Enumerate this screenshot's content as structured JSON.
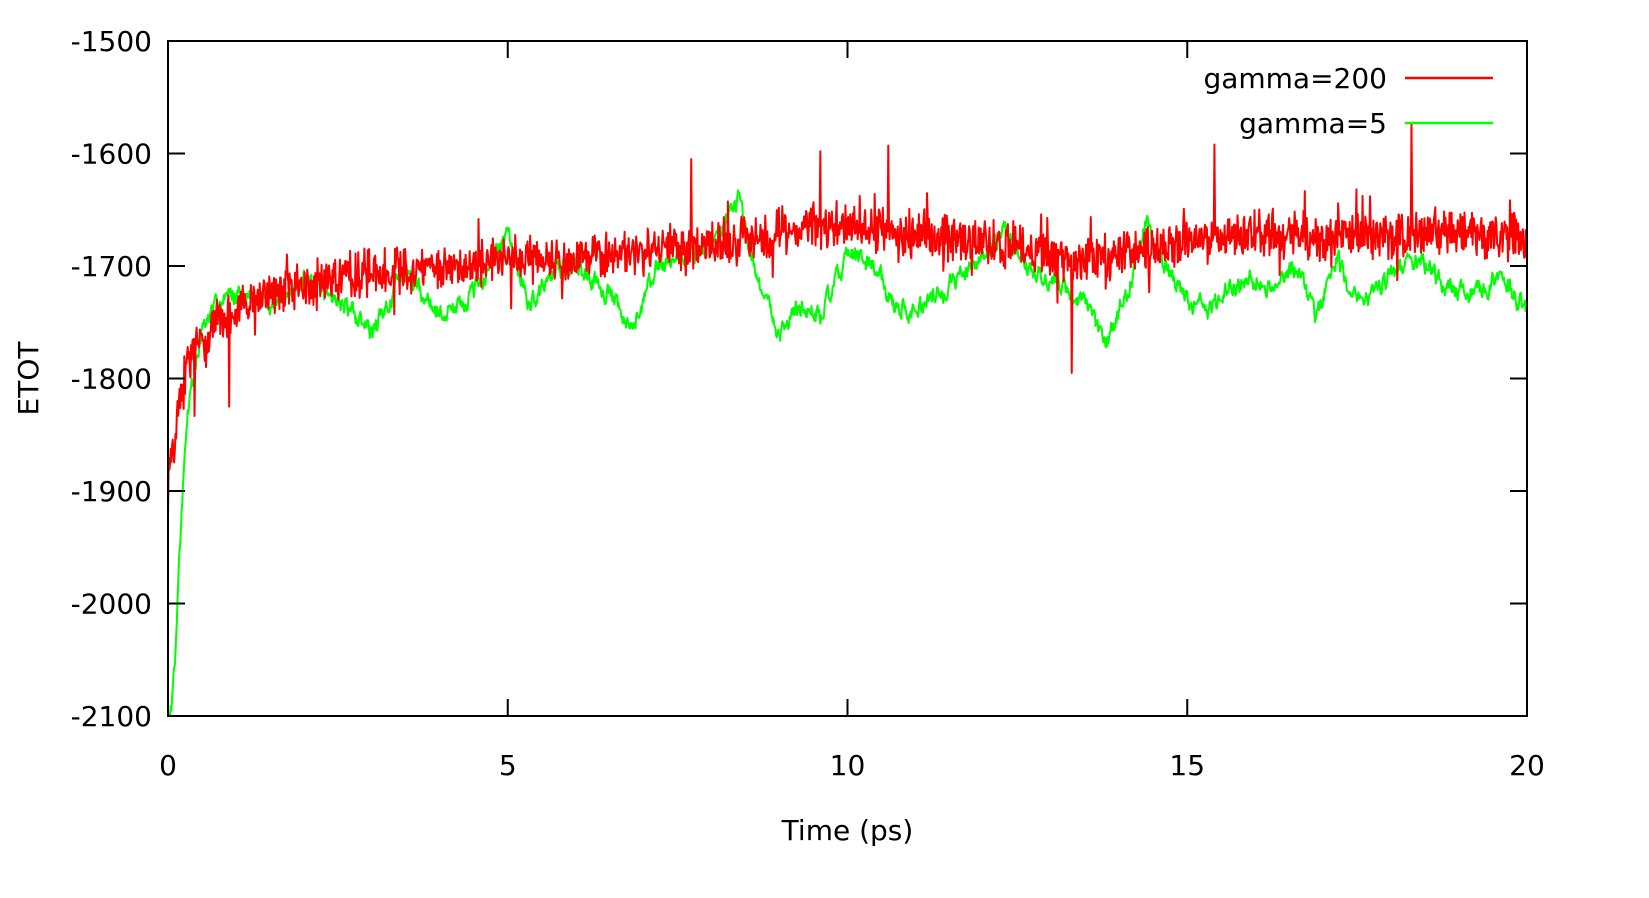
{
  "chart_data": {
    "type": "line",
    "xlabel": "Time (ps)",
    "ylabel": "ETOT",
    "xlim": [
      0,
      20
    ],
    "ylim": [
      -2100,
      -1500
    ],
    "xticks": [
      0,
      5,
      10,
      15,
      20
    ],
    "yticks": [
      -2100,
      -2000,
      -1900,
      -1800,
      -1700,
      -1600,
      -1500
    ],
    "grid": false,
    "legend_position": "top-right",
    "series": [
      {
        "name": "gamma=200",
        "color": "#ff0000",
        "style": "noisy",
        "noise": 16,
        "spikes": [
          {
            "x": 7.7,
            "y": -1605
          },
          {
            "x": 9.6,
            "y": -1598
          },
          {
            "x": 10.6,
            "y": -1593
          },
          {
            "x": 13.3,
            "y": -1795
          },
          {
            "x": 15.4,
            "y": -1592
          },
          {
            "x": 18.3,
            "y": -1573
          },
          {
            "x": 0.9,
            "y": -1825
          }
        ],
        "points": [
          [
            0.0,
            -1890
          ],
          [
            0.05,
            -1870
          ],
          [
            0.1,
            -1845
          ],
          [
            0.2,
            -1810
          ],
          [
            0.3,
            -1790
          ],
          [
            0.5,
            -1765
          ],
          [
            0.7,
            -1750
          ],
          [
            1.0,
            -1740
          ],
          [
            1.5,
            -1725
          ],
          [
            2.0,
            -1718
          ],
          [
            2.5,
            -1710
          ],
          [
            3.0,
            -1705
          ],
          [
            3.5,
            -1703
          ],
          [
            4.0,
            -1700
          ],
          [
            4.5,
            -1697
          ],
          [
            5.0,
            -1695
          ],
          [
            5.5,
            -1693
          ],
          [
            6.0,
            -1691
          ],
          [
            6.5,
            -1690
          ],
          [
            7.0,
            -1688
          ],
          [
            7.5,
            -1685
          ],
          [
            8.0,
            -1683
          ],
          [
            8.5,
            -1675
          ],
          [
            9.0,
            -1668
          ],
          [
            9.5,
            -1665
          ],
          [
            10.0,
            -1663
          ],
          [
            10.5,
            -1667
          ],
          [
            11.0,
            -1670
          ],
          [
            11.5,
            -1675
          ],
          [
            12.0,
            -1680
          ],
          [
            12.5,
            -1682
          ],
          [
            13.0,
            -1690
          ],
          [
            13.3,
            -1700
          ],
          [
            13.6,
            -1692
          ],
          [
            14.0,
            -1688
          ],
          [
            14.5,
            -1685
          ],
          [
            15.0,
            -1680
          ],
          [
            15.5,
            -1675
          ],
          [
            16.0,
            -1672
          ],
          [
            16.5,
            -1670
          ],
          [
            17.0,
            -1675
          ],
          [
            17.5,
            -1673
          ],
          [
            18.0,
            -1672
          ],
          [
            18.5,
            -1670
          ],
          [
            19.0,
            -1670
          ],
          [
            19.5,
            -1672
          ],
          [
            20.0,
            -1675
          ]
        ]
      },
      {
        "name": "gamma=5",
        "color": "#00ff00",
        "style": "smooth",
        "noise": 7,
        "points": [
          [
            0.0,
            -2100
          ],
          [
            0.05,
            -2095
          ],
          [
            0.1,
            -2050
          ],
          [
            0.15,
            -1980
          ],
          [
            0.2,
            -1920
          ],
          [
            0.25,
            -1870
          ],
          [
            0.3,
            -1830
          ],
          [
            0.4,
            -1790
          ],
          [
            0.5,
            -1760
          ],
          [
            0.7,
            -1735
          ],
          [
            1.0,
            -1725
          ],
          [
            1.5,
            -1735
          ],
          [
            2.0,
            -1715
          ],
          [
            2.5,
            -1730
          ],
          [
            3.0,
            -1760
          ],
          [
            3.5,
            -1705
          ],
          [
            4.0,
            -1745
          ],
          [
            4.5,
            -1725
          ],
          [
            5.0,
            -1670
          ],
          [
            5.3,
            -1735
          ],
          [
            5.7,
            -1705
          ],
          [
            6.0,
            -1700
          ],
          [
            6.5,
            -1725
          ],
          [
            6.8,
            -1760
          ],
          [
            7.2,
            -1700
          ],
          [
            7.6,
            -1690
          ],
          [
            8.0,
            -1680
          ],
          [
            8.4,
            -1640
          ],
          [
            8.7,
            -1715
          ],
          [
            9.0,
            -1760
          ],
          [
            9.3,
            -1735
          ],
          [
            9.6,
            -1745
          ],
          [
            10.0,
            -1690
          ],
          [
            10.4,
            -1700
          ],
          [
            10.7,
            -1735
          ],
          [
            11.0,
            -1740
          ],
          [
            11.4,
            -1725
          ],
          [
            11.7,
            -1705
          ],
          [
            12.0,
            -1690
          ],
          [
            12.3,
            -1670
          ],
          [
            12.6,
            -1695
          ],
          [
            12.9,
            -1710
          ],
          [
            13.2,
            -1720
          ],
          [
            13.5,
            -1735
          ],
          [
            13.8,
            -1770
          ],
          [
            14.1,
            -1725
          ],
          [
            14.4,
            -1660
          ],
          [
            14.7,
            -1705
          ],
          [
            15.0,
            -1730
          ],
          [
            15.3,
            -1740
          ],
          [
            15.6,
            -1720
          ],
          [
            16.0,
            -1710
          ],
          [
            16.3,
            -1720
          ],
          [
            16.6,
            -1700
          ],
          [
            16.9,
            -1745
          ],
          [
            17.2,
            -1690
          ],
          [
            17.5,
            -1735
          ],
          [
            17.8,
            -1725
          ],
          [
            18.0,
            -1705
          ],
          [
            18.4,
            -1695
          ],
          [
            18.8,
            -1715
          ],
          [
            19.2,
            -1725
          ],
          [
            19.6,
            -1710
          ],
          [
            20.0,
            -1740
          ]
        ]
      }
    ]
  }
}
